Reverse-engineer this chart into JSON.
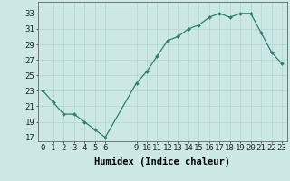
{
  "x": [
    0,
    1,
    2,
    3,
    4,
    5,
    6,
    9,
    10,
    11,
    12,
    13,
    14,
    15,
    16,
    17,
    18,
    19,
    20,
    21,
    22,
    23
  ],
  "y": [
    23,
    21.5,
    20,
    20,
    19,
    18,
    17,
    24,
    25.5,
    27.5,
    29.5,
    30,
    31,
    31.5,
    32.5,
    33,
    32.5,
    33,
    33,
    30.5,
    28,
    26.5
  ],
  "xlabel": "Humidex (Indice chaleur)",
  "ylim": [
    16.5,
    34.5
  ],
  "xlim": [
    -0.5,
    23.5
  ],
  "yticks": [
    17,
    19,
    21,
    23,
    25,
    27,
    29,
    31,
    33
  ],
  "xticks": [
    0,
    1,
    2,
    3,
    4,
    5,
    6,
    9,
    10,
    11,
    12,
    13,
    14,
    15,
    16,
    17,
    18,
    19,
    20,
    21,
    22,
    23
  ],
  "line_color": "#2e7d6e",
  "marker_color": "#2e7d6e",
  "bg_color": "#cce8e5",
  "grid_color": "#afd4d0",
  "font_size": 6.5,
  "xlabel_fontsize": 7.5
}
